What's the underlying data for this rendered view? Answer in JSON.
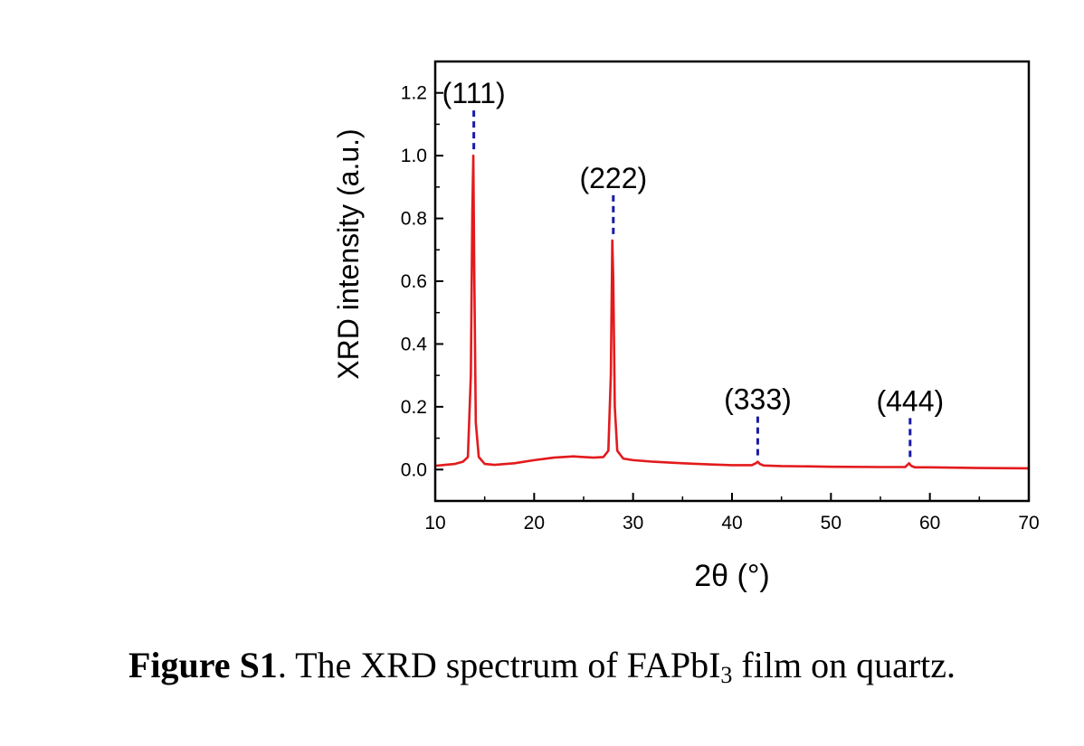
{
  "chart_data": {
    "type": "line",
    "xlabel": "2θ (°)",
    "ylabel": "XRD intensity (a.u.)",
    "xlim": [
      10,
      70
    ],
    "ylim": [
      -0.1,
      1.3
    ],
    "xticks": [
      10,
      20,
      30,
      40,
      50,
      60,
      70
    ],
    "yticks": [
      0.0,
      0.2,
      0.4,
      0.6,
      0.8,
      1.0,
      1.2
    ],
    "ytick_labels": [
      "0.0",
      "0.2",
      "0.4",
      "0.6",
      "0.8",
      "1.0",
      "1.2"
    ],
    "grid": false,
    "line_color": "#e31a1c",
    "marker_color": "#1a1aa6",
    "series": [
      {
        "x": [
          10,
          11,
          12,
          12.8,
          13.3,
          13.6,
          13.75,
          13.85,
          13.95,
          14.1,
          14.4,
          15,
          16,
          18,
          20,
          22,
          24,
          25,
          26,
          27,
          27.5,
          27.75,
          27.9,
          28.0,
          28.15,
          28.4,
          29,
          30,
          32,
          35,
          38,
          40,
          42,
          42.4,
          42.6,
          42.8,
          43.2,
          45,
          48,
          50,
          55,
          57.5,
          57.9,
          58.1,
          58.5,
          60,
          65,
          70
        ],
        "y": [
          0.012,
          0.015,
          0.018,
          0.025,
          0.04,
          0.3,
          0.82,
          1.0,
          0.62,
          0.15,
          0.04,
          0.018,
          0.015,
          0.02,
          0.03,
          0.038,
          0.042,
          0.04,
          0.038,
          0.04,
          0.06,
          0.3,
          0.73,
          0.6,
          0.2,
          0.06,
          0.035,
          0.03,
          0.025,
          0.02,
          0.016,
          0.014,
          0.014,
          0.02,
          0.025,
          0.018,
          0.013,
          0.011,
          0.01,
          0.009,
          0.008,
          0.008,
          0.02,
          0.012,
          0.007,
          0.007,
          0.005,
          0.004
        ]
      }
    ],
    "peaks": [
      {
        "label": "(111)",
        "x": 13.9,
        "y": 1.0
      },
      {
        "label": "(222)",
        "x": 28.0,
        "y": 0.73
      },
      {
        "label": "(333)",
        "x": 42.6,
        "y": 0.025
      },
      {
        "label": "(444)",
        "x": 58.0,
        "y": 0.02
      }
    ]
  },
  "figure": {
    "caption_bold": "Figure S1",
    "caption_text": ". The XRD spectrum of FAPbI",
    "caption_sub": "3",
    "caption_end": " film on quartz."
  }
}
